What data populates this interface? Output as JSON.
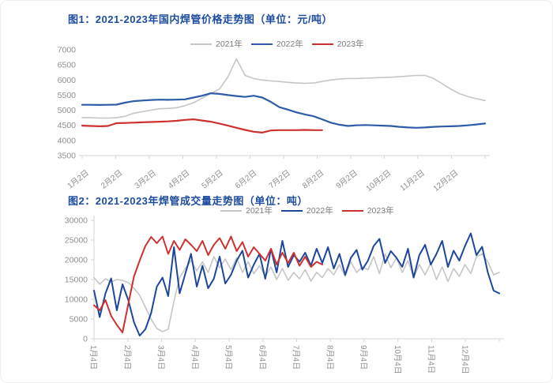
{
  "colors": {
    "title": "#1d4c9f",
    "axis_text": "#8f8f8f",
    "axis_line": "#d6d6d6",
    "legend_text": "#7a7a7a",
    "series_gray": "#c6c6c6",
    "series_blue": "#2e5ca8",
    "series_blue_dark": "#1c479c",
    "series_red": "#cf3030"
  },
  "chart_data": [
    {
      "type": "line",
      "title": "图1：2021-2023年国内焊管价格走势图（单位：元/吨）",
      "ylabel": "",
      "xlabel": "",
      "ylim": [
        3500,
        7000
      ],
      "yticks": [
        "3500",
        "4000",
        "4500",
        "5000",
        "5500",
        "6000",
        "6500",
        "7000"
      ],
      "xticklabels": [
        "1月2日",
        "2月2日",
        "3月2日",
        "4月2日",
        "5月2日",
        "6月2日",
        "7月2日",
        "8月2日",
        "9月2日",
        "10月2日",
        "11月2日",
        "12月2日"
      ],
      "x_label_style": "slant",
      "y_axis_line": false,
      "grid": "off",
      "legend_position": "top-center",
      "series": [
        {
          "name": "2021年",
          "color": "#c6c6c6",
          "stroke_width": 1.6,
          "values": [
            4760,
            4750,
            4740,
            4740,
            4750,
            4800,
            4900,
            4950,
            5000,
            5050,
            5060,
            5080,
            5150,
            5250,
            5400,
            5550,
            5700,
            6100,
            6700,
            6150,
            6050,
            6000,
            5970,
            5950,
            5920,
            5900,
            5890,
            5900,
            5950,
            6000,
            6030,
            6050,
            6050,
            6060,
            6070,
            6080,
            6090,
            6110,
            6130,
            6150,
            6150,
            6050,
            5880,
            5700,
            5550,
            5450,
            5380,
            5320
          ]
        },
        {
          "name": "2022年",
          "color": "#2e5ca8",
          "stroke_width": 2.2,
          "values": [
            5180,
            5180,
            5175,
            5180,
            5185,
            5250,
            5300,
            5320,
            5340,
            5350,
            5345,
            5350,
            5360,
            5420,
            5480,
            5560,
            5540,
            5500,
            5470,
            5440,
            5480,
            5420,
            5280,
            5100,
            5020,
            4930,
            4860,
            4800,
            4700,
            4590,
            4520,
            4480,
            4500,
            4510,
            4500,
            4490,
            4480,
            4450,
            4430,
            4420,
            4430,
            4450,
            4460,
            4470,
            4480,
            4500,
            4530,
            4560
          ]
        },
        {
          "name": "2023年",
          "color": "#cf3030",
          "stroke_width": 2.2,
          "values": [
            4490,
            4480,
            4470,
            4480,
            4570,
            4580,
            4590,
            4600,
            4610,
            4620,
            4630,
            4650,
            4680,
            4700,
            4660,
            4620,
            4560,
            4490,
            4420,
            4350,
            4290,
            4260,
            4330,
            4340,
            4340,
            4340,
            4350,
            4340,
            4340
          ]
        }
      ]
    },
    {
      "type": "line",
      "title": "图2：2021-2023年焊管成交量走势图（单位：吨）",
      "ylabel": "",
      "xlabel": "",
      "ylim": [
        0,
        30000
      ],
      "yticks": [
        "0",
        "5000",
        "10000",
        "15000",
        "20000",
        "25000",
        "30000"
      ],
      "xticklabels": [
        "1月4日",
        "2月4日",
        "3月4日",
        "4月4日",
        "5月4日",
        "6月4日",
        "7月4日",
        "8月4日",
        "9月4日",
        "10月4日",
        "11月4日",
        "12月4日"
      ],
      "x_label_style": "vertical",
      "y_axis_line": true,
      "grid": "off",
      "legend_position": "top-right",
      "series": [
        {
          "name": "2021年",
          "color": "#c6c6c6",
          "stroke_width": 1.6,
          "values": [
            15500,
            13800,
            15200,
            14400,
            15000,
            14800,
            14200,
            12800,
            11000,
            8000,
            5000,
            2600,
            1800,
            2400,
            9500,
            15500,
            17800,
            19800,
            17200,
            19500,
            16800,
            20800,
            18000,
            20200,
            17500,
            20500,
            16800,
            19500,
            16500,
            18500,
            15800,
            18200,
            15000,
            17800,
            14800,
            16800,
            15200,
            17500,
            14600,
            16800,
            15500,
            17800,
            16200,
            18800,
            15800,
            19500,
            16800,
            18200,
            17500,
            20800,
            16500,
            21500,
            18000,
            20500,
            16800,
            19800,
            15500,
            18800,
            16200,
            19200,
            15000,
            18200,
            14500,
            17800,
            15800,
            18800,
            16500,
            20800,
            21500,
            19500,
            16200,
            16800
          ]
        },
        {
          "name": "2022年",
          "color": "#1c479c",
          "stroke_width": 2,
          "values": [
            12200,
            5500,
            11500,
            15300,
            7200,
            13800,
            9800,
            4200,
            800,
            2400,
            6500,
            13200,
            15500,
            10800,
            23200,
            11500,
            16500,
            21500,
            13200,
            18500,
            12800,
            15200,
            20800,
            14000,
            16200,
            19800,
            22300,
            15500,
            18800,
            21500,
            15200,
            22800,
            16800,
            24800,
            18200,
            21200,
            19500,
            21800,
            18500,
            22800,
            19200,
            23200,
            17800,
            21500,
            16200,
            20500,
            22500,
            17500,
            19800,
            23500,
            25300,
            19200,
            22200,
            20500,
            18200,
            22800,
            15500,
            21200,
            23800,
            18800,
            21500,
            24800,
            18200,
            22300,
            19800,
            23500,
            26700,
            21200,
            23300,
            16800,
            12200,
            11500
          ]
        },
        {
          "name": "2023年",
          "color": "#cf3030",
          "stroke_width": 2,
          "values": [
            8500,
            7200,
            9800,
            5800,
            3500,
            1600,
            8800,
            15800,
            19800,
            23500,
            25800,
            24200,
            25900,
            21500,
            24800,
            22500,
            25200,
            23800,
            22200,
            24800,
            21200,
            23800,
            25500,
            22800,
            25900,
            22200,
            24500,
            20800,
            23200,
            21500,
            19800,
            22800,
            18800,
            21800,
            19200,
            21800,
            18500,
            20800,
            18200,
            19500,
            18800
          ]
        }
      ]
    }
  ]
}
